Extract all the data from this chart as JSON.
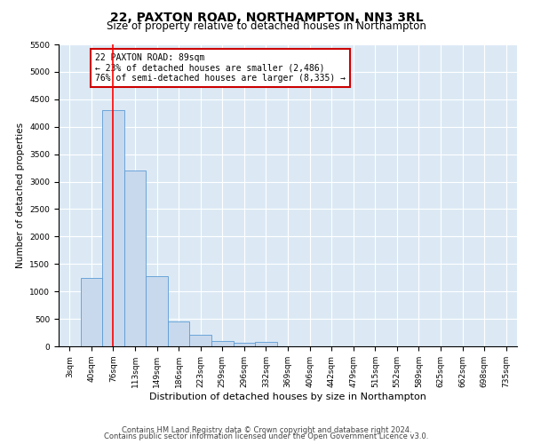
{
  "title1": "22, PAXTON ROAD, NORTHAMPTON, NN3 3RL",
  "title2": "Size of property relative to detached houses in Northampton",
  "xlabel": "Distribution of detached houses by size in Northampton",
  "ylabel": "Number of detached properties",
  "categories": [
    "3sqm",
    "40sqm",
    "76sqm",
    "113sqm",
    "149sqm",
    "186sqm",
    "223sqm",
    "259sqm",
    "296sqm",
    "332sqm",
    "369sqm",
    "406sqm",
    "442sqm",
    "479sqm",
    "515sqm",
    "552sqm",
    "589sqm",
    "625sqm",
    "662sqm",
    "698sqm",
    "735sqm"
  ],
  "values": [
    0,
    1250,
    4300,
    3200,
    1280,
    450,
    215,
    95,
    70,
    75,
    0,
    0,
    0,
    0,
    0,
    0,
    0,
    0,
    0,
    0,
    0
  ],
  "bar_color": "#c8d9ed",
  "bar_edge_color": "#5b9bd5",
  "red_line_index": 2,
  "ylim": [
    0,
    5500
  ],
  "yticks": [
    0,
    500,
    1000,
    1500,
    2000,
    2500,
    3000,
    3500,
    4000,
    4500,
    5000,
    5500
  ],
  "annotation_text": "22 PAXTON ROAD: 89sqm\n← 23% of detached houses are smaller (2,486)\n76% of semi-detached houses are larger (8,335) →",
  "annotation_box_color": "#ffffff",
  "annotation_box_edge": "#cc0000",
  "footer1": "Contains HM Land Registry data © Crown copyright and database right 2024.",
  "footer2": "Contains public sector information licensed under the Open Government Licence v3.0.",
  "bg_color": "#ffffff",
  "plot_bg_color": "#dce9f5",
  "grid_color": "#ffffff",
  "title1_fontsize": 10,
  "title2_fontsize": 8.5,
  "xlabel_fontsize": 8,
  "ylabel_fontsize": 7.5,
  "tick_fontsize": 6.5,
  "annotation_fontsize": 7,
  "footer_fontsize": 6
}
